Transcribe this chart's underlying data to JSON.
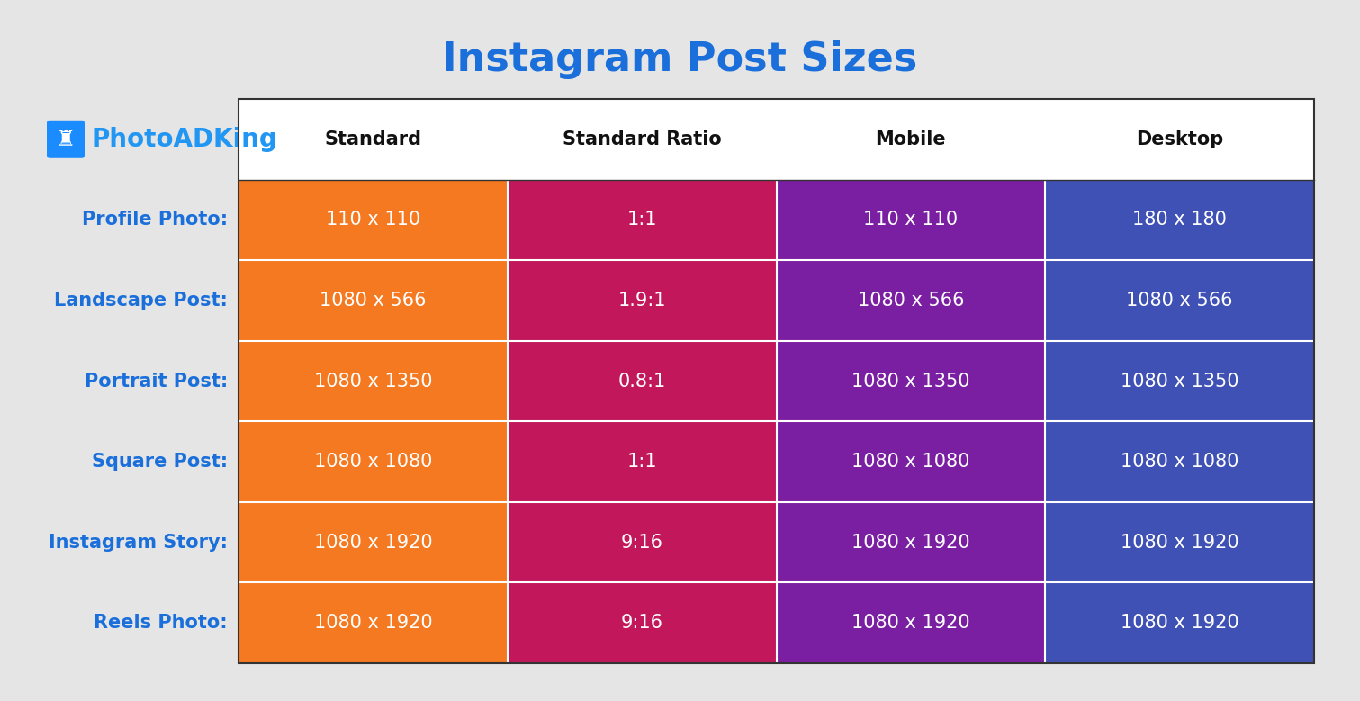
{
  "title": "Instagram Post Sizes",
  "title_color": "#1a6fdb",
  "background_color": "#e5e5e5",
  "header_row": [
    "Standard",
    "Standard Ratio",
    "Mobile",
    "Desktop"
  ],
  "row_labels": [
    "Profile Photo:",
    "Landscape Post:",
    "Portrait Post:",
    "Square Post:",
    "Instagram Story:",
    "Reels Photo:"
  ],
  "row_label_color": "#1a6fdb",
  "table_data": [
    [
      "110 x 110",
      "1:1",
      "110 x 110",
      "180 x 180"
    ],
    [
      "1080 x 566",
      "1.9:1",
      "1080 x 566",
      "1080 x 566"
    ],
    [
      "1080 x 1350",
      "0.8:1",
      "1080 x 1350",
      "1080 x 1350"
    ],
    [
      "1080 x 1080",
      "1:1",
      "1080 x 1080",
      "1080 x 1080"
    ],
    [
      "1080 x 1920",
      "9:16",
      "1080 x 1920",
      "1080 x 1920"
    ],
    [
      "1080 x 1920",
      "9:16",
      "1080 x 1920",
      "1080 x 1920"
    ]
  ],
  "col_colors": [
    "#F47920",
    "#C2185B",
    "#7B1FA2",
    "#3F51B5"
  ],
  "header_bg": "#ffffff",
  "header_text_color": "#111111",
  "cell_text_color": "#ffffff",
  "logo_text": "PhotoADKing",
  "logo_color": "#2196F3",
  "logo_icon_color": "#1a8cff",
  "table_border_color": "#333333",
  "cell_line_color": "#ffffff"
}
